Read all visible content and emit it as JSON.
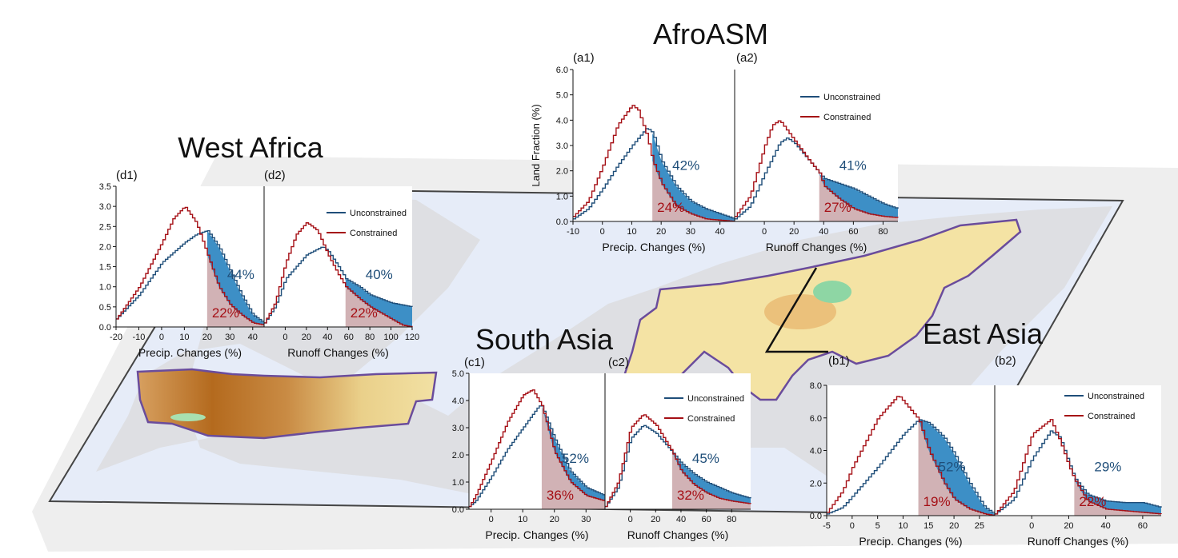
{
  "colors": {
    "unconstrained": "#1f4e79",
    "constrained": "#a50f15",
    "unconstrained_fill": "#3d8fc6",
    "constrained_fill": "#c9a4a8",
    "map_background": "#e8e8e8",
    "map_ocean": "#e6ecf8",
    "region_fill": "#f4e3a4",
    "region_fill_dark": "#b46a1e",
    "region_outline": "#6a4c9c"
  },
  "regions": [
    {
      "key": "afroasm",
      "title": "AfroASM"
    },
    {
      "key": "west_africa",
      "title": "West Africa"
    },
    {
      "key": "south_asia",
      "title": "South Asia"
    },
    {
      "key": "east_asia",
      "title": "East Asia"
    }
  ],
  "chart_data": [
    {
      "id": "a1",
      "panel_label": "(a1)",
      "type": "line",
      "region": "AfroASM",
      "xlabel": "Precip. Changes (%)",
      "ylabel": "Land Fraction (%)",
      "xlim": [
        -10,
        45
      ],
      "ylim": [
        0,
        6.0
      ],
      "xticks": [
        -10,
        0,
        10,
        20,
        30,
        40
      ],
      "yticks": [
        0.0,
        1.0,
        2.0,
        3.0,
        4.0,
        5.0,
        6.0
      ],
      "threshold": 17,
      "unconstrained_pct": "42%",
      "constrained_pct": "24%",
      "series": [
        {
          "name": "Unconstrained",
          "x": [
            -10,
            -5,
            0,
            5,
            10,
            15,
            17,
            20,
            25,
            30,
            35,
            40,
            45
          ],
          "y": [
            0.1,
            0.5,
            1.3,
            2.2,
            3.0,
            3.7,
            3.5,
            2.4,
            1.4,
            0.8,
            0.5,
            0.3,
            0.1
          ]
        },
        {
          "name": "Constrained",
          "x": [
            -10,
            -5,
            0,
            5,
            10,
            12,
            15,
            17,
            20,
            25,
            30,
            35,
            40,
            45
          ],
          "y": [
            0.2,
            0.8,
            2.2,
            3.8,
            4.6,
            4.4,
            3.4,
            2.4,
            1.5,
            0.6,
            0.3,
            0.1,
            0.05,
            0.0
          ]
        }
      ]
    },
    {
      "id": "a2",
      "panel_label": "(a2)",
      "type": "line",
      "region": "AfroASM",
      "xlabel": "Runoff Changes (%)",
      "ylabel": "",
      "xlim": [
        -20,
        90
      ],
      "ylim": [
        0,
        6.0
      ],
      "xticks": [
        0,
        20,
        40,
        60,
        80
      ],
      "yticks": [],
      "threshold": 37,
      "unconstrained_pct": "41%",
      "constrained_pct": "27%",
      "legend": [
        "Unconstrained",
        "Constrained"
      ],
      "series": [
        {
          "name": "Unconstrained",
          "x": [
            -20,
            -10,
            0,
            10,
            15,
            20,
            30,
            37,
            40,
            50,
            60,
            70,
            80,
            90
          ],
          "y": [
            0.1,
            0.6,
            1.9,
            3.1,
            3.3,
            3.1,
            2.4,
            1.9,
            1.7,
            1.5,
            1.3,
            1.0,
            0.7,
            0.5
          ]
        },
        {
          "name": "Constrained",
          "x": [
            -20,
            -10,
            0,
            5,
            10,
            20,
            30,
            37,
            40,
            50,
            60,
            70,
            80,
            90
          ],
          "y": [
            0.2,
            1.0,
            3.0,
            3.8,
            4.0,
            3.2,
            2.4,
            1.9,
            1.4,
            0.9,
            0.5,
            0.3,
            0.2,
            0.15
          ]
        }
      ]
    },
    {
      "id": "d1",
      "panel_label": "(d1)",
      "type": "line",
      "region": "West Africa",
      "xlabel": "Precip. Changes (%)",
      "ylabel": "",
      "xlim": [
        -20,
        45
      ],
      "ylim": [
        0,
        3.5
      ],
      "xticks": [
        -20,
        -10,
        0,
        10,
        20,
        30,
        40
      ],
      "yticks": [
        0.0,
        0.5,
        1.0,
        1.5,
        2.0,
        2.5,
        3.0,
        3.5
      ],
      "threshold": 20,
      "unconstrained_pct": "44%",
      "constrained_pct": "22%",
      "series": [
        {
          "name": "Unconstrained",
          "x": [
            -20,
            -10,
            0,
            10,
            15,
            20,
            25,
            30,
            35,
            40,
            45
          ],
          "y": [
            0.2,
            0.8,
            1.6,
            2.1,
            2.3,
            2.4,
            2.0,
            1.4,
            0.8,
            0.3,
            0.1
          ]
        },
        {
          "name": "Constrained",
          "x": [
            -20,
            -10,
            0,
            5,
            10,
            15,
            20,
            25,
            30,
            35,
            40,
            45
          ],
          "y": [
            0.2,
            1.0,
            2.1,
            2.7,
            3.0,
            2.6,
            1.8,
            1.0,
            0.55,
            0.3,
            0.1,
            0.05
          ]
        }
      ]
    },
    {
      "id": "d2",
      "panel_label": "(d2)",
      "type": "line",
      "region": "West Africa",
      "xlabel": "Runoff Changes (%)",
      "ylabel": "",
      "xlim": [
        -20,
        120
      ],
      "ylim": [
        0,
        3.5
      ],
      "xticks": [
        0,
        20,
        40,
        60,
        80,
        100,
        120
      ],
      "yticks": [],
      "threshold": 57,
      "unconstrained_pct": "40%",
      "constrained_pct": "22%",
      "legend": [
        "Unconstrained",
        "Constrained"
      ],
      "series": [
        {
          "name": "Unconstrained",
          "x": [
            -20,
            -10,
            0,
            20,
            35,
            40,
            50,
            57,
            70,
            80,
            90,
            100,
            110,
            120
          ],
          "y": [
            0.1,
            0.5,
            1.2,
            1.8,
            2.0,
            1.9,
            1.5,
            1.2,
            1.0,
            0.8,
            0.7,
            0.6,
            0.55,
            0.5
          ]
        },
        {
          "name": "Constrained",
          "x": [
            -20,
            -10,
            0,
            10,
            20,
            30,
            40,
            50,
            57,
            70,
            80,
            90,
            100,
            110,
            120
          ],
          "y": [
            0.1,
            0.6,
            1.6,
            2.3,
            2.6,
            2.4,
            1.8,
            1.3,
            1.0,
            0.7,
            0.5,
            0.35,
            0.2,
            0.05,
            0.0
          ]
        }
      ]
    },
    {
      "id": "c1",
      "panel_label": "(c1)",
      "type": "line",
      "region": "South Asia",
      "xlabel": "Precip. Changes (%)",
      "ylabel": "",
      "xlim": [
        -7,
        36
      ],
      "ylim": [
        0,
        5.0
      ],
      "xticks": [
        0,
        10,
        20,
        30
      ],
      "yticks": [
        0.0,
        1.0,
        2.0,
        3.0,
        4.0,
        5.0
      ],
      "threshold": 16,
      "unconstrained_pct": "52%",
      "constrained_pct": "36%",
      "series": [
        {
          "name": "Unconstrained",
          "x": [
            -7,
            -5,
            0,
            5,
            10,
            15,
            16,
            20,
            25,
            30,
            36
          ],
          "y": [
            0.1,
            0.3,
            1.2,
            2.2,
            3.0,
            3.8,
            3.8,
            2.6,
            1.4,
            0.8,
            0.5
          ]
        },
        {
          "name": "Constrained",
          "x": [
            -7,
            -5,
            0,
            5,
            10,
            13,
            16,
            20,
            25,
            30,
            36
          ],
          "y": [
            0.1,
            0.5,
            1.8,
            3.2,
            4.2,
            4.4,
            3.8,
            2.1,
            1.0,
            0.5,
            0.3
          ]
        }
      ]
    },
    {
      "id": "c2",
      "panel_label": "(c2)",
      "type": "line",
      "region": "South Asia",
      "xlabel": "Runoff Changes (%)",
      "ylabel": "",
      "xlim": [
        -20,
        95
      ],
      "ylim": [
        0,
        5.0
      ],
      "xticks": [
        0,
        20,
        40,
        60,
        80
      ],
      "yticks": [],
      "threshold": 33,
      "unconstrained_pct": "45%",
      "constrained_pct": "32%",
      "legend": [
        "Unconstrained",
        "Constrained"
      ],
      "series": [
        {
          "name": "Unconstrained",
          "x": [
            -20,
            -10,
            0,
            10,
            20,
            33,
            40,
            50,
            60,
            70,
            80,
            95
          ],
          "y": [
            0.1,
            0.8,
            2.6,
            3.1,
            2.8,
            2.1,
            1.7,
            1.3,
            1.0,
            0.8,
            0.6,
            0.4
          ]
        },
        {
          "name": "Constrained",
          "x": [
            -20,
            -10,
            0,
            10,
            20,
            33,
            40,
            50,
            60,
            70,
            80,
            95
          ],
          "y": [
            0.1,
            1.0,
            3.0,
            3.5,
            3.1,
            2.1,
            1.4,
            0.9,
            0.6,
            0.4,
            0.3,
            0.2
          ]
        }
      ]
    },
    {
      "id": "b1",
      "panel_label": "(b1)",
      "type": "line",
      "region": "East Asia",
      "xlabel": "Precip. Changes (%)",
      "ylabel": "",
      "xlim": [
        -5,
        28
      ],
      "ylim": [
        0,
        8.0
      ],
      "xticks": [
        -5,
        0,
        5,
        10,
        15,
        20,
        25
      ],
      "yticks": [
        0.0,
        2.0,
        4.0,
        6.0,
        8.0
      ],
      "threshold": 13,
      "unconstrained_pct": "52%",
      "constrained_pct": "19%",
      "series": [
        {
          "name": "Unconstrained",
          "x": [
            -5,
            -2,
            0,
            5,
            10,
            13,
            15,
            18,
            20,
            23,
            26,
            28
          ],
          "y": [
            0.1,
            0.5,
            1.2,
            3.0,
            5.0,
            5.9,
            5.7,
            4.8,
            3.8,
            2.0,
            0.5,
            0.1
          ]
        },
        {
          "name": "Constrained",
          "x": [
            -5,
            -2,
            0,
            5,
            9,
            13,
            15,
            18,
            20,
            23,
            26,
            28
          ],
          "y": [
            0.2,
            1.5,
            3.0,
            6.0,
            7.4,
            5.9,
            4.0,
            2.0,
            1.0,
            0.4,
            0.1,
            0.0
          ]
        }
      ]
    },
    {
      "id": "b2",
      "panel_label": "(b2)",
      "type": "line",
      "region": "East Asia",
      "xlabel": "Runoff Changes (%)",
      "ylabel": "",
      "xlim": [
        -20,
        70
      ],
      "ylim": [
        0,
        8.0
      ],
      "xticks": [
        0,
        20,
        40,
        60
      ],
      "yticks": [],
      "threshold": 23,
      "unconstrained_pct": "29%",
      "constrained_pct": "22%",
      "legend": [
        "Unconstrained",
        "Constrained"
      ],
      "series": [
        {
          "name": "Unconstrained",
          "x": [
            -20,
            -10,
            0,
            10,
            15,
            20,
            23,
            30,
            40,
            50,
            60,
            70
          ],
          "y": [
            0.1,
            1.0,
            3.5,
            5.2,
            4.8,
            3.2,
            2.3,
            1.3,
            0.9,
            0.8,
            0.8,
            0.5
          ]
        },
        {
          "name": "Constrained",
          "x": [
            -20,
            -10,
            0,
            10,
            15,
            20,
            23,
            30,
            40,
            50,
            60,
            70
          ],
          "y": [
            0.1,
            1.5,
            5.0,
            5.9,
            4.6,
            3.0,
            2.2,
            0.9,
            0.4,
            0.3,
            0.2,
            0.1
          ]
        }
      ]
    }
  ]
}
